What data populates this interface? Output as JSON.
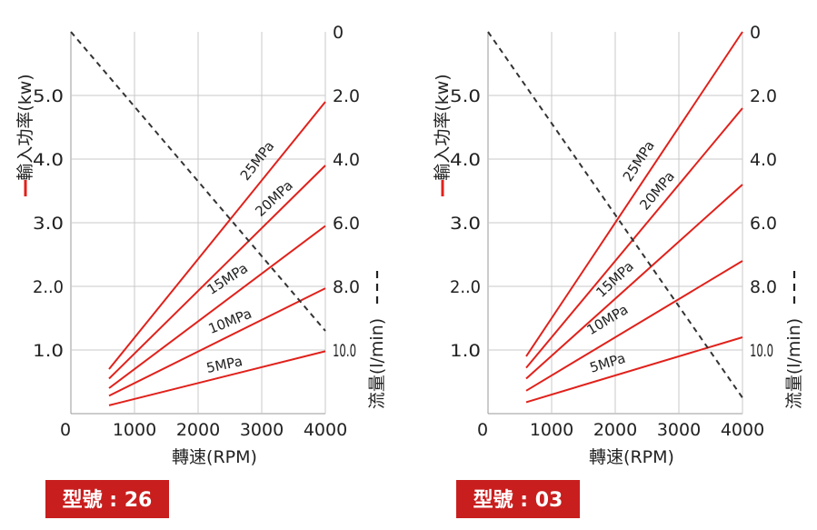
{
  "colors": {
    "power_line": "#e0211b",
    "flow_line": "#333333",
    "grid": "#c8c8c8",
    "badge_bg": "#c81e1e"
  },
  "chart_data": [
    {
      "type": "line",
      "model_label": "型號 : 26",
      "xlabel": "轉速(RPM)",
      "ylabel_left": "輸入功率(kw)",
      "ylabel_right": "流量(l/min)",
      "x_ticks": [
        "0",
        "1000",
        "2000",
        "3000",
        "4000"
      ],
      "y_left_ticks": [
        "1.0",
        "2..0",
        "3.0",
        "4.0",
        "5.0"
      ],
      "y_right_ticks": [
        "0",
        "2.0",
        "4.0",
        "6.0",
        "8.0",
        "10.0"
      ],
      "xlim": [
        0,
        4000
      ],
      "ylim_left": [
        0,
        6
      ],
      "ylim_right": [
        0,
        12
      ],
      "power_series": [
        {
          "name": "25MPa",
          "x": [
            600,
            4000
          ],
          "y": [
            0.7,
            4.9
          ]
        },
        {
          "name": "20MPa",
          "x": [
            600,
            4000
          ],
          "y": [
            0.55,
            3.9
          ]
        },
        {
          "name": "15MPa",
          "x": [
            600,
            4000
          ],
          "y": [
            0.4,
            2.95
          ]
        },
        {
          "name": "10MPa",
          "x": [
            600,
            4000
          ],
          "y": [
            0.28,
            1.97
          ]
        },
        {
          "name": "5MPa",
          "x": [
            600,
            4000
          ],
          "y": [
            0.13,
            0.98
          ]
        }
      ],
      "flow_series": {
        "x": [
          0,
          4000
        ],
        "y": [
          0,
          9.4
        ]
      }
    },
    {
      "type": "line",
      "model_label": "型號 : 03",
      "xlabel": "轉速(RPM)",
      "ylabel_left": "輸入功率(kw)",
      "ylabel_right": "流量(l/min)",
      "x_ticks": [
        "0",
        "1000",
        "2000",
        "3000",
        "4000"
      ],
      "y_left_ticks": [
        "1.0",
        "2..0",
        "3.0",
        "4.0",
        "5.0"
      ],
      "y_right_ticks": [
        "0",
        "2.0",
        "4.0",
        "6.0",
        "8.0",
        "10.0"
      ],
      "xlim": [
        0,
        4000
      ],
      "ylim_left": [
        0,
        6
      ],
      "ylim_right": [
        0,
        12
      ],
      "power_series": [
        {
          "name": "25MPa",
          "x": [
            600,
            4000
          ],
          "y": [
            0.9,
            6.0
          ]
        },
        {
          "name": "20MPa",
          "x": [
            600,
            4000
          ],
          "y": [
            0.72,
            4.8
          ]
        },
        {
          "name": "15MPa",
          "x": [
            600,
            4000
          ],
          "y": [
            0.55,
            3.6
          ]
        },
        {
          "name": "10MPa",
          "x": [
            600,
            4000
          ],
          "y": [
            0.36,
            2.4
          ]
        },
        {
          "name": "5MPa",
          "x": [
            600,
            4000
          ],
          "y": [
            0.18,
            1.2
          ]
        }
      ],
      "flow_series": {
        "x": [
          0,
          4000
        ],
        "y": [
          0,
          11.5
        ]
      }
    }
  ]
}
